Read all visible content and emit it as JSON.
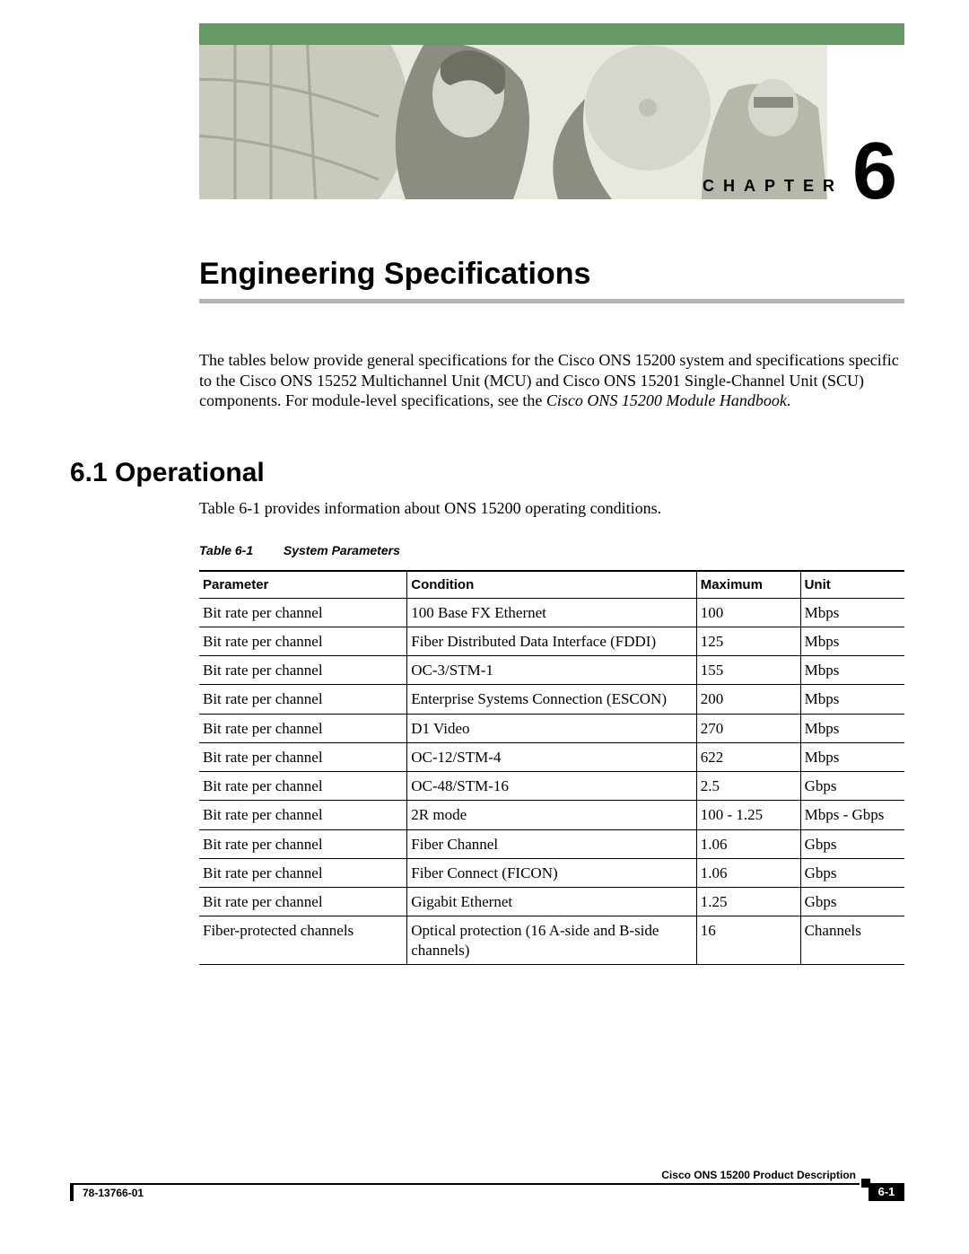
{
  "chapter": {
    "label": "CHAPTER",
    "number": "6"
  },
  "title": "Engineering Specifications",
  "intro_p1": "The tables below provide general specifications for the Cisco ONS 15200 system and specifications specific to the Cisco ONS 15252 Multichannel Unit (MCU) and Cisco ONS 15201 Single-Channel Unit (SCU) components. For module-level specifications, see the ",
  "intro_em": "Cisco ONS 15200 Module Handbook",
  "intro_p2": ".",
  "section": {
    "num_title": "6.1  Operational",
    "lead": "Table 6-1 provides information about ONS 15200 operating conditions."
  },
  "table": {
    "caption_num": "Table 6-1",
    "caption_title": "System Parameters",
    "headers": {
      "param": "Parameter",
      "cond": "Condition",
      "max": "Maximum",
      "unit": "Unit"
    },
    "rows": [
      {
        "param": "Bit rate per channel",
        "cond": "100 Base FX Ethernet",
        "max": "100",
        "unit": "Mbps"
      },
      {
        "param": "Bit rate per channel",
        "cond": "Fiber Distributed Data Interface (FDDI)",
        "max": "125",
        "unit": "Mbps"
      },
      {
        "param": "Bit rate per channel",
        "cond": "OC-3/STM-1",
        "max": "155",
        "unit": "Mbps"
      },
      {
        "param": "Bit rate per channel",
        "cond": "Enterprise Systems Connection (ESCON)",
        "max": "200",
        "unit": "Mbps"
      },
      {
        "param": "Bit rate per channel",
        "cond": "D1 Video",
        "max": "270",
        "unit": "Mbps"
      },
      {
        "param": "Bit rate per channel",
        "cond": "OC-12/STM-4",
        "max": "622",
        "unit": "Mbps"
      },
      {
        "param": "Bit rate per channel",
        "cond": "OC-48/STM-16",
        "max": "2.5",
        "unit": "Gbps"
      },
      {
        "param": "Bit rate per channel",
        "cond": "2R mode",
        "max": "100 - 1.25",
        "unit": "Mbps - Gbps"
      },
      {
        "param": "Bit rate per channel",
        "cond": "Fiber Channel",
        "max": "1.06",
        "unit": "Gbps"
      },
      {
        "param": "Bit rate per channel",
        "cond": "Fiber Connect (FICON)",
        "max": "1.06",
        "unit": "Gbps"
      },
      {
        "param": "Bit rate per channel",
        "cond": "Gigabit Ethernet",
        "max": "1.25",
        "unit": "Gbps"
      },
      {
        "param": "Fiber-protected channels",
        "cond": "Optical protection (16 A-side and B-side channels)",
        "max": "16",
        "unit": "Channels"
      }
    ]
  },
  "footer": {
    "book": "Cisco ONS 15200 Product Description",
    "docnum": "78-13766-01",
    "page": "6-1"
  },
  "colors": {
    "green": "#669966",
    "rule": "#b3b3b3",
    "art_light": "#d6d6cc",
    "art_mid": "#b7b7aa",
    "art_dark": "#8c8c80",
    "art_darker": "#6e6e63"
  }
}
